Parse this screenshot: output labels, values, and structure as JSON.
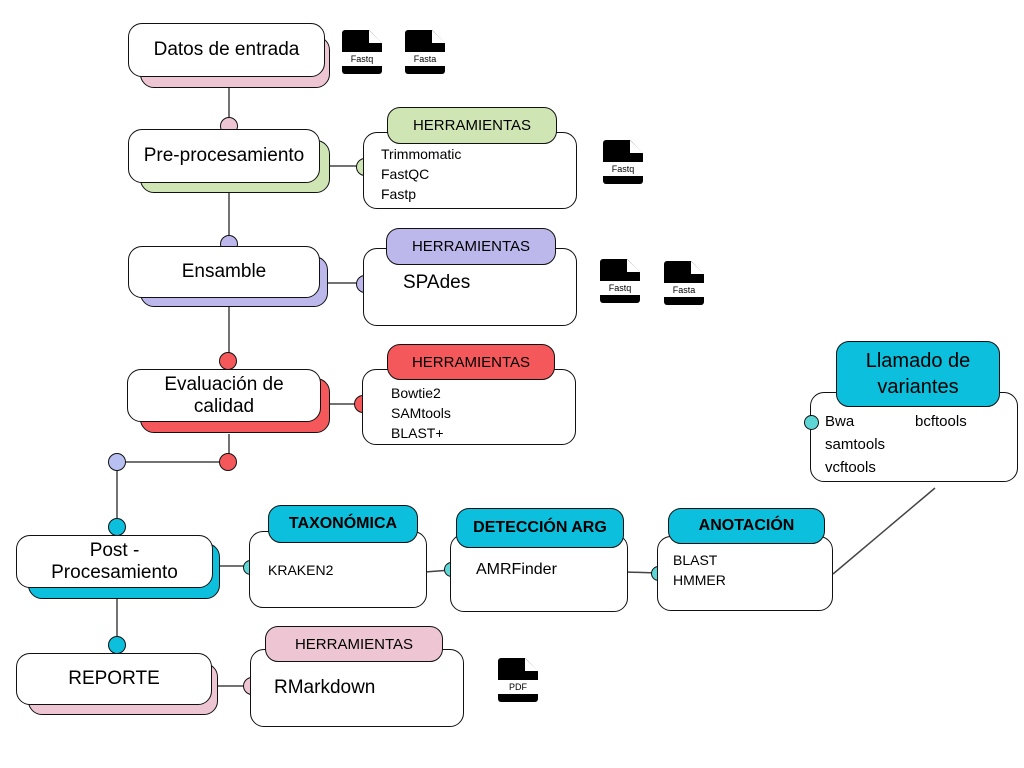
{
  "steps": {
    "input": "Datos de entrada",
    "preprocessing": "Pre-procesamiento",
    "assembly": "Ensamble",
    "quality": "Evaluación de calidad",
    "postprocessing": "Post - Procesamiento",
    "report": "REPORTE"
  },
  "tools": {
    "preprocessing": {
      "label": "HERRAMIENTAS",
      "items": [
        "Trimmomatic",
        "FastQC",
        "Fastp"
      ]
    },
    "assembly": {
      "label": "HERRAMIENTAS",
      "items": [
        "SPAdes"
      ]
    },
    "quality": {
      "label": "HERRAMIENTAS",
      "items": [
        "Bowtie2",
        "SAMtools",
        "BLAST+"
      ]
    },
    "taxonomic": {
      "label": "TAXONÓMICA",
      "items": [
        "KRAKEN2"
      ]
    },
    "arg": {
      "label": "DETECCIÓN ARG",
      "items": [
        "AMRFinder"
      ]
    },
    "annotation": {
      "label": "ANOTACIÓN",
      "items": [
        "BLAST",
        "HMMER"
      ]
    },
    "variants": {
      "label": "Llamado de variantes",
      "items": [
        "Bwa",
        "bcftools",
        "samtools",
        "vcftools"
      ]
    },
    "report": {
      "label": "HERRAMIENTAS",
      "items": [
        "RMarkdown"
      ]
    }
  },
  "files": {
    "input_fastq": "Fastq",
    "input_fasta": "Fasta",
    "pre_fastq": "Fastq",
    "asm_fastq": "Fastq",
    "asm_fasta": "Fasta",
    "report_pdf": "PDF"
  },
  "colors": {
    "pink": "#eec6d3",
    "green": "#cfe6b4",
    "lavender": "#bdb8ec",
    "red": "#f5585a",
    "cyan": "#0cbfdc",
    "blue_dot": "#b8c0f2",
    "teal_dot": "#5fd6d6"
  }
}
